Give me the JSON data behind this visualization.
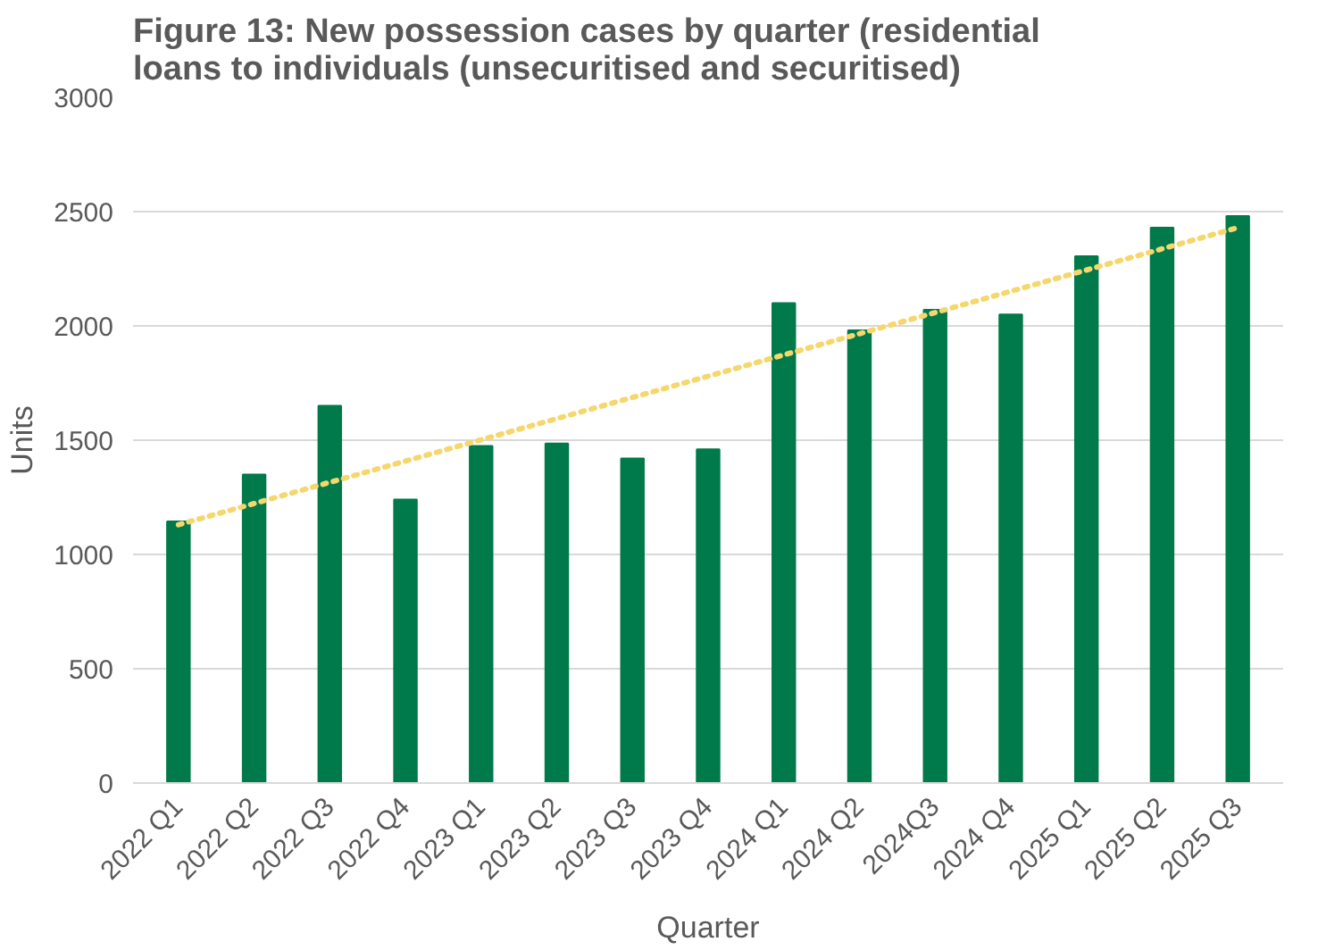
{
  "chart_data": {
    "type": "bar",
    "title": "Figure 13: New possession cases by quarter (residential\nloans to individuals (unsecuritised and securitised)",
    "xlabel": "Quarter",
    "ylabel": "Units",
    "categories": [
      "2022 Q1",
      "2022 Q2",
      "2022 Q3",
      "2022 Q4",
      "2023 Q1",
      "2023 Q2",
      "2023 Q3",
      "2023 Q4",
      "2024 Q1",
      "2024 Q2",
      "2024Q3",
      "2024 Q4",
      "2025 Q1",
      "2025 Q2",
      "2025 Q3"
    ],
    "series": [
      {
        "color": "#007a4a",
        "values": [
          1145,
          1350,
          1650,
          1240,
          1475,
          1485,
          1420,
          1460,
          2100,
          1980,
          2070,
          2050,
          2305,
          2430,
          2480
        ]
      },
      {
        "type": "line",
        "color": "#f5d76e",
        "x": [
          "2022 Q1",
          "2025 Q3"
        ],
        "values": [
          1130,
          2430
        ],
        "marker": "none",
        "line_style": "dotted"
      }
    ],
    "ylim": [
      0,
      3000
    ],
    "yticks": [
      0,
      500,
      1000,
      1500,
      2000,
      2500,
      3000
    ],
    "grid": "y"
  }
}
